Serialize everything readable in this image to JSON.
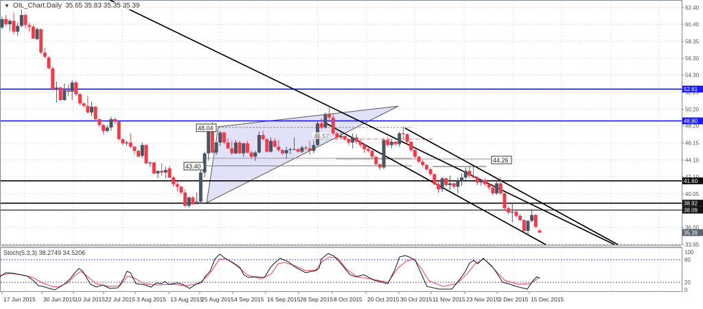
{
  "header": {
    "menu_icon": "triangle-down-icon",
    "symbol": "OIL_Chart.Daily",
    "ohlc": "35.65 35.83 35.35 35.39"
  },
  "colors": {
    "bull": "#4a5563",
    "bear": "#f03b4b",
    "grid": "#dcdcdc",
    "axis": "#7f8c95",
    "blue_line": "#1a1aff",
    "triangle_fill": "#dcdcf6",
    "stoch_main": "#111111",
    "stoch_signal": "#f03b4b",
    "stoch_level": "#6a6ad8"
  },
  "chart_data": [
    {
      "type": "candlestick",
      "title": "OIL_Chart.Daily",
      "ohlc_last": {
        "open": 35.65,
        "high": 35.83,
        "low": 35.35,
        "close": 35.39
      },
      "y_axis_ticks": [
        62.4,
        60.4,
        58.35,
        56.3,
        54.3,
        52.25,
        50.2,
        48.2,
        46.15,
        44.1,
        42.1,
        40.05,
        38.0,
        36.0,
        33.95
      ],
      "ylim": [
        33.95,
        62.4
      ],
      "x_tick_labels": [
        "17 Jun 2015",
        "30 Jun 2015",
        "10 Jul 2015",
        "22 Jul 2015",
        "3 Aug 2015",
        "13 Aug 2015",
        "25 Aug 2015",
        "4 Sep 2015",
        "16 Sep 2015",
        "28 Sep 2015",
        "8 Oct 2015",
        "20 Oct 2015",
        "30 Oct 2015",
        "11 Nov 2015",
        "23 Nov 2015",
        "3 Dec 2015",
        "15 Dec 2015"
      ],
      "horizontal_levels": [
        {
          "value": 52.61,
          "label": "52.61",
          "color": "blue"
        },
        {
          "value": 48.8,
          "label": "48.80",
          "color": "blue"
        },
        {
          "value": 41.6,
          "label": "41.60",
          "color": "black"
        },
        {
          "value": 38.92,
          "label": "38.92",
          "color": "black"
        },
        {
          "value": 38.09,
          "label": "38.09",
          "color": "black-thin"
        }
      ],
      "price_label_current": "35.39",
      "annotations": [
        {
          "text": "48.04",
          "value": 48.04
        },
        {
          "text": "43.40",
          "value": 43.4
        },
        {
          "text": "46.57",
          "value": 46.57
        },
        {
          "text": "44.26",
          "value": 44.26
        }
      ],
      "candles": [
        [
          60.0,
          61.3,
          59.8,
          61.0
        ],
        [
          61.0,
          61.5,
          60.2,
          60.4
        ],
        [
          60.4,
          61.0,
          59.6,
          60.8
        ],
        [
          60.8,
          61.8,
          59.2,
          59.5
        ],
        [
          59.5,
          60.6,
          59.0,
          60.2
        ],
        [
          60.2,
          62.2,
          60.0,
          61.5
        ],
        [
          61.5,
          61.7,
          59.9,
          60.3
        ],
        [
          60.3,
          60.6,
          59.5,
          60.1
        ],
        [
          60.1,
          60.3,
          58.6,
          58.7
        ],
        [
          58.6,
          60.0,
          58.5,
          59.8
        ],
        [
          59.8,
          59.9,
          56.8,
          57.0
        ],
        [
          57.0,
          57.6,
          56.3,
          56.5
        ],
        [
          56.4,
          56.6,
          55.0,
          55.1
        ],
        [
          55.1,
          55.3,
          52.5,
          52.6
        ],
        [
          52.7,
          53.5,
          51.0,
          52.8
        ],
        [
          52.8,
          52.9,
          51.2,
          51.3
        ],
        [
          51.3,
          53.3,
          51.2,
          52.5
        ],
        [
          52.5,
          53.2,
          51.8,
          52.3
        ],
        [
          52.3,
          53.7,
          51.3,
          53.4
        ],
        [
          53.4,
          53.6,
          51.8,
          52.0
        ],
        [
          52.0,
          52.1,
          50.7,
          50.9
        ],
        [
          50.9,
          51.0,
          50.4,
          50.6
        ],
        [
          50.6,
          51.8,
          49.7,
          49.8
        ],
        [
          49.8,
          51.1,
          49.4,
          50.5
        ],
        [
          50.5,
          50.6,
          48.9,
          49.0
        ],
        [
          49.0,
          49.1,
          48.1,
          48.3
        ],
        [
          48.3,
          48.4,
          47.2,
          47.6
        ],
        [
          47.6,
          48.3,
          47.4,
          48.0
        ],
        [
          48.0,
          49.3,
          47.6,
          49.0
        ],
        [
          49.0,
          49.2,
          48.4,
          48.7
        ],
        [
          48.7,
          48.8,
          46.5,
          46.6
        ],
        [
          46.6,
          46.7,
          45.9,
          46.1
        ],
        [
          46.1,
          46.4,
          45.8,
          46.2
        ],
        [
          46.2,
          47.3,
          45.5,
          45.7
        ],
        [
          45.7,
          45.8,
          44.8,
          45.2
        ],
        [
          45.2,
          45.3,
          44.7,
          44.5
        ],
        [
          44.6,
          46.2,
          44.3,
          45.9
        ],
        [
          45.9,
          46.0,
          43.6,
          43.7
        ],
        [
          43.7,
          43.9,
          43.3,
          43.8
        ],
        [
          43.8,
          43.9,
          42.4,
          42.5
        ],
        [
          42.5,
          42.8,
          41.9,
          42.8
        ],
        [
          42.8,
          43.7,
          42.2,
          42.6
        ],
        [
          42.6,
          43.3,
          41.9,
          42.9
        ],
        [
          43.1,
          43.4,
          41.9,
          42.0
        ],
        [
          42.0,
          42.2,
          40.9,
          41.2
        ],
        [
          41.2,
          41.6,
          40.3,
          40.9
        ],
        [
          40.9,
          41.0,
          40.0,
          40.2
        ],
        [
          40.2,
          40.6,
          38.5,
          38.6
        ],
        [
          38.6,
          39.7,
          38.4,
          39.6
        ],
        [
          39.6,
          39.8,
          38.7,
          38.8
        ],
        [
          38.8,
          40.2,
          38.8,
          39.1
        ],
        [
          39.1,
          43.0,
          38.9,
          42.6
        ],
        [
          42.6,
          45.1,
          42.0,
          44.9
        ],
        [
          44.9,
          48.1,
          44.0,
          47.8
        ],
        [
          47.8,
          48.6,
          44.9,
          45.0
        ],
        [
          45.0,
          46.3,
          44.7,
          46.2
        ],
        [
          46.2,
          47.6,
          45.8,
          47.4
        ],
        [
          47.4,
          47.5,
          46.0,
          46.2
        ],
        [
          46.2,
          46.7,
          45.4,
          45.5
        ],
        [
          45.5,
          46.4,
          44.7,
          44.9
        ],
        [
          44.9,
          46.5,
          44.8,
          46.2
        ],
        [
          46.2,
          46.4,
          44.8,
          44.9
        ],
        [
          44.9,
          46.2,
          44.5,
          46.1
        ],
        [
          46.1,
          46.4,
          44.9,
          45.0
        ],
        [
          45.0,
          45.2,
          44.3,
          44.5
        ],
        [
          44.5,
          45.2,
          44.0,
          45.0
        ],
        [
          45.0,
          47.5,
          44.9,
          47.1
        ],
        [
          47.1,
          47.6,
          46.4,
          46.6
        ],
        [
          46.6,
          46.7,
          45.0,
          45.1
        ],
        [
          45.1,
          46.8,
          45.0,
          46.4
        ],
        [
          46.4,
          46.7,
          45.6,
          45.7
        ],
        [
          45.7,
          46.5,
          45.1,
          45.3
        ],
        [
          45.3,
          45.4,
          44.7,
          44.9
        ],
        [
          44.9,
          45.7,
          44.3,
          45.3
        ],
        [
          45.3,
          45.6,
          44.8,
          45.4
        ],
        [
          45.4,
          46.8,
          45.3,
          45.4
        ],
        [
          45.4,
          45.5,
          45.0,
          45.1
        ],
        [
          45.1,
          45.8,
          44.9,
          45.6
        ],
        [
          45.6,
          45.8,
          45.2,
          45.5
        ],
        [
          45.5,
          46.4,
          44.7,
          45.2
        ],
        [
          45.2,
          46.4,
          44.9,
          45.9
        ],
        [
          45.9,
          48.7,
          45.8,
          48.5
        ],
        [
          48.5,
          49.1,
          47.8,
          48.0
        ],
        [
          48.0,
          49.8,
          47.9,
          49.6
        ],
        [
          49.6,
          50.4,
          48.8,
          49.2
        ],
        [
          49.2,
          49.7,
          47.1,
          47.3
        ],
        [
          47.3,
          47.5,
          46.5,
          46.8
        ],
        [
          46.8,
          47.4,
          46.7,
          47.0
        ],
        [
          47.0,
          47.0,
          46.4,
          46.6
        ],
        [
          46.6,
          46.7,
          45.9,
          46.2
        ],
        [
          46.2,
          47.3,
          45.5,
          46.8
        ],
        [
          46.8,
          47.2,
          46.0,
          46.3
        ],
        [
          46.3,
          46.6,
          45.6,
          45.9
        ],
        [
          45.9,
          46.1,
          45.0,
          45.4
        ],
        [
          45.4,
          45.6,
          45.0,
          45.2
        ],
        [
          45.2,
          45.3,
          44.3,
          44.5
        ],
        [
          44.5,
          44.6,
          43.4,
          43.6
        ],
        [
          43.6,
          43.7,
          42.9,
          43.2
        ],
        [
          43.2,
          46.7,
          43.0,
          46.5
        ],
        [
          46.5,
          46.8,
          45.7,
          45.9
        ],
        [
          45.9,
          46.6,
          45.5,
          46.3
        ],
        [
          46.3,
          46.4,
          45.8,
          46.0
        ],
        [
          46.0,
          47.5,
          45.7,
          47.3
        ],
        [
          47.3,
          48.1,
          46.6,
          47.2
        ],
        [
          47.2,
          47.3,
          46.0,
          46.3
        ],
        [
          46.3,
          46.3,
          45.1,
          45.3
        ],
        [
          45.3,
          45.4,
          44.3,
          44.5
        ],
        [
          44.5,
          44.6,
          43.7,
          43.9
        ],
        [
          43.9,
          44.1,
          43.2,
          43.5
        ],
        [
          43.5,
          43.6,
          42.8,
          43.0
        ],
        [
          43.0,
          43.2,
          42.2,
          42.4
        ],
        [
          42.4,
          42.5,
          41.1,
          41.2
        ],
        [
          41.2,
          41.6,
          40.2,
          40.6
        ],
        [
          40.6,
          42.1,
          40.3,
          41.9
        ],
        [
          41.9,
          42.0,
          40.9,
          41.1
        ],
        [
          41.1,
          42.2,
          40.5,
          41.3
        ],
        [
          41.3,
          41.4,
          40.7,
          40.9
        ],
        [
          40.9,
          42.0,
          40.1,
          41.6
        ],
        [
          41.6,
          42.5,
          41.0,
          42.0
        ],
        [
          42.0,
          43.2,
          41.7,
          42.8
        ],
        [
          42.8,
          43.4,
          41.9,
          42.2
        ],
        [
          42.2,
          43.3,
          41.9,
          42.0
        ],
        [
          42.0,
          42.2,
          41.1,
          41.4
        ],
        [
          41.4,
          41.8,
          41.0,
          41.7
        ],
        [
          41.7,
          41.9,
          41.0,
          41.2
        ],
        [
          41.2,
          41.3,
          40.5,
          40.8
        ],
        [
          40.8,
          41.2,
          39.9,
          40.1
        ],
        [
          40.1,
          41.7,
          39.9,
          41.3
        ],
        [
          41.3,
          42.0,
          39.9,
          40.1
        ],
        [
          40.1,
          40.2,
          38.0,
          38.3
        ],
        [
          38.3,
          38.5,
          37.6,
          37.8
        ],
        [
          37.8,
          39.0,
          36.6,
          37.9
        ],
        [
          37.9,
          38.2,
          37.2,
          37.4
        ],
        [
          37.4,
          37.6,
          36.7,
          36.9
        ],
        [
          36.9,
          37.0,
          35.4,
          35.6
        ],
        [
          35.6,
          36.9,
          35.0,
          36.8
        ],
        [
          36.8,
          38.2,
          36.6,
          37.5
        ],
        [
          37.5,
          37.6,
          35.9,
          36.1
        ],
        [
          35.65,
          35.83,
          35.35,
          35.39
        ]
      ]
    },
    {
      "type": "line",
      "title": "Stoch(5,3,3) 38.2749 34.5206",
      "label": "Stoch(5,3,3) 38.2749 34.5206",
      "y_axis_ticks": [
        100,
        80,
        20,
        0
      ],
      "ylim": [
        0,
        100
      ],
      "levels": [
        80,
        20
      ],
      "series": [
        {
          "name": "Main",
          "value": 38.2749
        },
        {
          "name": "Signal",
          "value": 34.5206
        }
      ]
    }
  ],
  "axis": {
    "price_ticks": [
      "62.40",
      "60.40",
      "58.35",
      "56.30",
      "54.30",
      "52.25",
      "50.20",
      "48.20",
      "46.15",
      "44.10",
      "42.10",
      "40.05",
      "38.00",
      "36.00",
      "33.95"
    ],
    "stoch_ticks": [
      "100",
      "80",
      "20",
      "0"
    ]
  }
}
